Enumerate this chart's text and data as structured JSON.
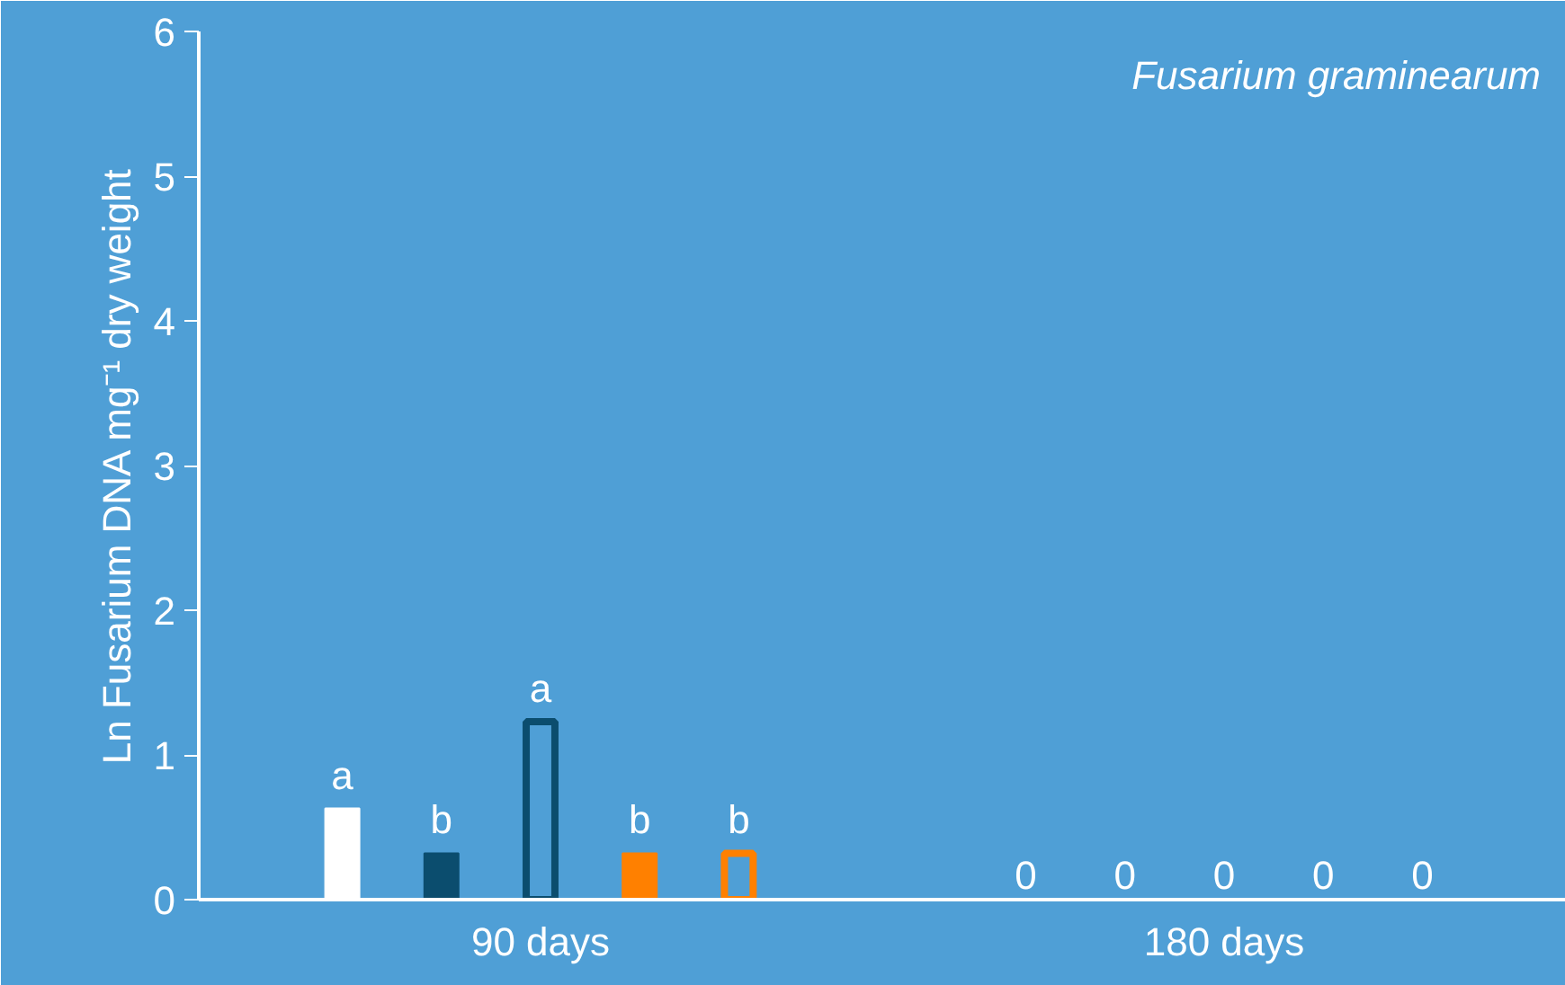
{
  "chart_data": {
    "type": "bar",
    "ylabel": "Ln Fusarium DNA mg⁻¹ dry weight",
    "annotations": [
      "Fusarium graminearum"
    ],
    "categories": [
      "90 days",
      "180 days"
    ],
    "series": [
      {
        "color": "#ffffff",
        "values": [
          0.63,
          0
        ],
        "value_labels": [
          "a",
          "0"
        ]
      },
      {
        "color": "#0b4d6e",
        "values": [
          0.32,
          0
        ],
        "value_labels": [
          "b",
          "0"
        ]
      },
      {
        "color": "#0b4d6e",
        "values": [
          1.23,
          0
        ],
        "value_labels": [
          "a",
          "0"
        ]
      },
      {
        "color": "#ff8000",
        "values": [
          0.32,
          0
        ],
        "value_labels": [
          "b",
          "0"
        ]
      },
      {
        "color": "#ff8000",
        "values": [
          0.32,
          0
        ],
        "value_labels": [
          "b",
          "0"
        ]
      }
    ],
    "ylim": [
      0,
      6
    ],
    "yticks": [
      0,
      1,
      2,
      3,
      4,
      5,
      6
    ],
    "grid": false
  }
}
